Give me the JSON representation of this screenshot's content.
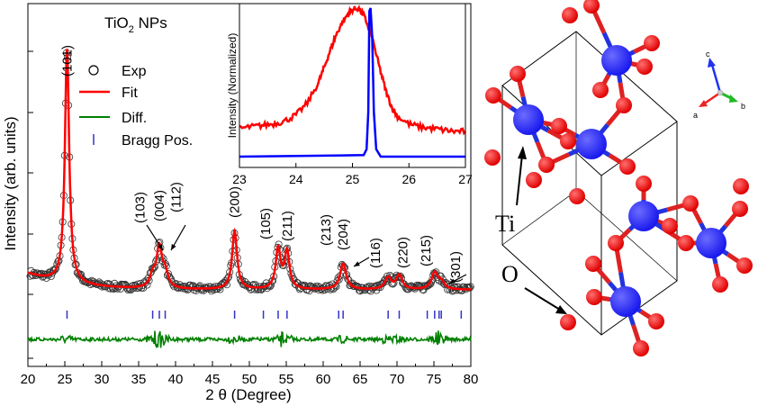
{
  "chart_data": [
    {
      "type": "scatter",
      "title": "TiO2 NPs",
      "title_main": "TiO",
      "title_sub": "2",
      "title_rest": " NPs",
      "xlabel": "2 θ (Degree)",
      "ylabel": "Intensity (arb. units)",
      "xlim": [
        20,
        80
      ],
      "x_ticks": [
        20,
        25,
        30,
        35,
        40,
        45,
        50,
        55,
        60,
        65,
        70,
        75,
        80
      ],
      "grid": false,
      "legend_position": "top-right",
      "legend": [
        {
          "label": "Exp",
          "marker": "open-circle",
          "color": "#000000"
        },
        {
          "label": "Fit",
          "marker": "line",
          "color": "#ff0000"
        },
        {
          "label": "Diff.",
          "marker": "line",
          "color": "#008000"
        },
        {
          "label": "Bragg Pos.",
          "marker": "tick",
          "color": "#3333cc"
        }
      ],
      "peaks": [
        {
          "two_theta": 25.3,
          "height": 100,
          "width": 0.35
        },
        {
          "two_theta": 36.9,
          "height": 5,
          "width": 0.45
        },
        {
          "two_theta": 37.8,
          "height": 17,
          "width": 0.45
        },
        {
          "two_theta": 38.6,
          "height": 6,
          "width": 0.45
        },
        {
          "two_theta": 48.0,
          "height": 25,
          "width": 0.4
        },
        {
          "two_theta": 53.9,
          "height": 17,
          "width": 0.4
        },
        {
          "two_theta": 55.1,
          "height": 16,
          "width": 0.4
        },
        {
          "two_theta": 62.7,
          "height": 11,
          "width": 0.5
        },
        {
          "two_theta": 68.8,
          "height": 5,
          "width": 0.5
        },
        {
          "two_theta": 70.3,
          "height": 6,
          "width": 0.5
        },
        {
          "two_theta": 75.1,
          "height": 7,
          "width": 0.5
        },
        {
          "two_theta": 76.0,
          "height": 3,
          "width": 0.5
        }
      ],
      "peak_labels": [
        {
          "text": "(101)",
          "x": 25.3
        },
        {
          "text": "(103)",
          "x": 36.9
        },
        {
          "text": "(004)",
          "x": 37.8
        },
        {
          "text": "(112)",
          "x": 38.6
        },
        {
          "text": "(200)",
          "x": 48.0
        },
        {
          "text": "(105)",
          "x": 53.9
        },
        {
          "text": "(211)",
          "x": 55.1
        },
        {
          "text": "(213)",
          "x": 62.1
        },
        {
          "text": "(204)",
          "x": 62.7
        },
        {
          "text": "(116)",
          "x": 68.8
        },
        {
          "text": "(220)",
          "x": 70.3
        },
        {
          "text": "(215)",
          "x": 75.1
        },
        {
          "text": "(301)",
          "x": 76.0
        }
      ],
      "bragg_positions": [
        25.3,
        36.9,
        37.8,
        38.6,
        48.0,
        51.9,
        53.9,
        55.1,
        62.1,
        62.7,
        68.8,
        70.3,
        74.1,
        75.1,
        75.7,
        76.0,
        78.7
      ]
    },
    {
      "type": "line",
      "title": "",
      "xlabel": "",
      "ylabel": "Intensity (Normalized)",
      "xlim": [
        23,
        27
      ],
      "x_ticks": [
        23,
        24,
        25,
        26,
        27
      ],
      "series": [
        {
          "color": "#ff0000",
          "x": [
            23.0,
            23.2,
            23.4,
            23.6,
            23.8,
            24.0,
            24.2,
            24.4,
            24.5,
            24.6,
            24.7,
            24.8,
            24.9,
            25.0,
            25.1,
            25.2,
            25.3,
            25.4,
            25.5,
            25.6,
            25.7,
            25.8,
            26.0,
            26.2,
            26.4,
            26.6,
            26.8,
            27.0
          ],
          "y": [
            0.19,
            0.2,
            0.21,
            0.22,
            0.24,
            0.28,
            0.36,
            0.5,
            0.6,
            0.71,
            0.81,
            0.89,
            0.95,
            0.99,
            1.0,
            0.95,
            0.86,
            0.72,
            0.57,
            0.43,
            0.33,
            0.27,
            0.22,
            0.2,
            0.19,
            0.18,
            0.17,
            0.17
          ]
        },
        {
          "color": "#0000ff",
          "x": [
            23.0,
            25.2,
            25.25,
            25.28,
            25.3,
            25.32,
            25.35,
            25.38,
            25.42,
            25.5,
            27.0
          ],
          "y": [
            0.0,
            0.01,
            0.05,
            0.3,
            0.98,
            1.0,
            0.8,
            0.3,
            0.05,
            0.0,
            0.0
          ]
        }
      ]
    }
  ],
  "structure": {
    "labels": {
      "ti": "Ti",
      "o": "O"
    },
    "axes": {
      "a": "a",
      "b": "b",
      "c": "c"
    },
    "colors": {
      "ti": "#1a1aee",
      "o": "#e00000",
      "bond_ti": "#2233dd",
      "bond_o": "#dd2222"
    }
  }
}
